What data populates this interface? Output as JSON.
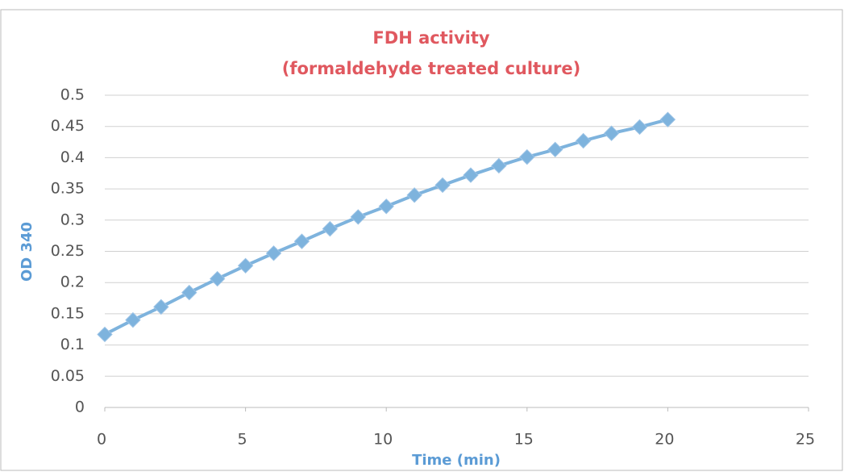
{
  "chart_data": {
    "type": "line",
    "title": "FDH activity",
    "subtitle": "(formaldehyde treated culture)",
    "x_label": "Time (min)",
    "y_label": "OD 340",
    "x": [
      0,
      1,
      2,
      3,
      4,
      5,
      6,
      7,
      8,
      9,
      10,
      11,
      12,
      13,
      14,
      15,
      16,
      17,
      18,
      19,
      20
    ],
    "series": [
      {
        "name": "OD 340",
        "color": "#7eb3dd",
        "values": [
          0.117,
          0.14,
          0.161,
          0.184,
          0.206,
          0.227,
          0.247,
          0.266,
          0.286,
          0.305,
          0.322,
          0.34,
          0.356,
          0.372,
          0.387,
          0.401,
          0.413,
          0.427,
          0.439,
          0.449,
          0.461
        ]
      }
    ],
    "xlim": [
      0,
      25
    ],
    "xticks": [
      0,
      5,
      10,
      15,
      20,
      25
    ],
    "ylim": [
      0,
      0.5
    ],
    "yticks": [
      0,
      0.05,
      0.1,
      0.15,
      0.2,
      0.25,
      0.3,
      0.35,
      0.4,
      0.45,
      0.5
    ],
    "grid": true
  }
}
